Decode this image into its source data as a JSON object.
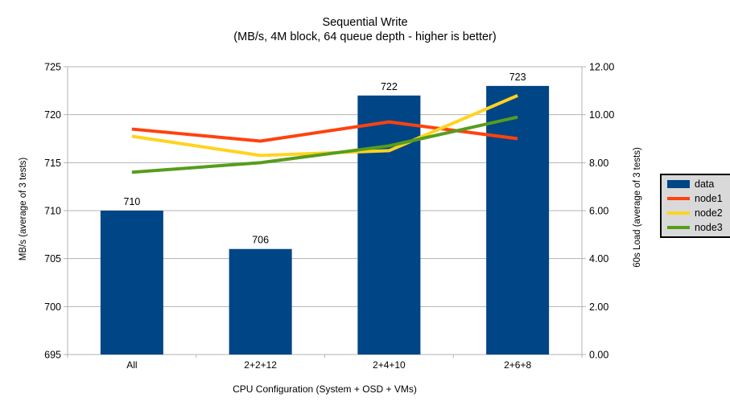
{
  "title": {
    "line1": "Sequential Write",
    "line2": "(MB/s, 4M block, 64 queue depth - higher is better)"
  },
  "chart_data": {
    "type": "bar+line combo",
    "title": "Sequential Write",
    "subtitle": "(MB/s, 4M block, 64 queue depth - higher is better)",
    "categories": [
      "All",
      "2+2+12",
      "2+4+10",
      "2+6+8"
    ],
    "series": [
      {
        "name": "data",
        "type": "bar",
        "axis": "left",
        "color": "#004586",
        "values": [
          710,
          706,
          722,
          723
        ]
      },
      {
        "name": "node1",
        "type": "line",
        "axis": "right",
        "color": "#ff420e",
        "values": [
          9.4,
          8.9,
          9.7,
          9.0
        ]
      },
      {
        "name": "node2",
        "type": "line",
        "axis": "right",
        "color": "#ffd320",
        "values": [
          9.1,
          8.3,
          8.5,
          10.8
        ]
      },
      {
        "name": "node3",
        "type": "line",
        "axis": "right",
        "color": "#579d1c",
        "values": [
          7.6,
          8.0,
          8.7,
          9.9
        ]
      }
    ],
    "bar_labels": [
      "710",
      "706",
      "722",
      "723"
    ],
    "xlabel": "CPU Configuration (System + OSD + VMs)",
    "ylabel_left": "MB/s (average of 3 tests)",
    "ylabel_right": "60s Load (average of 3 tests)",
    "left_axis": {
      "min": 695,
      "max": 725,
      "step": 5,
      "ticks": [
        "725",
        "720",
        "715",
        "710",
        "705",
        "700",
        "695"
      ]
    },
    "right_axis": {
      "min": 0,
      "max": 12,
      "step": 2,
      "ticks": [
        "12.00",
        "10.00",
        "8.00",
        "6.00",
        "4.00",
        "2.00",
        "0.00"
      ]
    },
    "grid": "horizontal",
    "legend_position": "right"
  },
  "legend": {
    "items": [
      {
        "label": "data",
        "color": "#004586",
        "swatch": "bar"
      },
      {
        "label": "node1",
        "color": "#ff420e",
        "swatch": "line"
      },
      {
        "label": "node2",
        "color": "#ffd320",
        "swatch": "line"
      },
      {
        "label": "node3",
        "color": "#579d1c",
        "swatch": "line"
      }
    ]
  },
  "colors": {
    "background": "#ffffff",
    "gridline": "#b3b3b3",
    "axis": "#b3b3b3",
    "text": "#000000",
    "legend_background": "#d9d9d9",
    "legend_border": "#000000"
  }
}
